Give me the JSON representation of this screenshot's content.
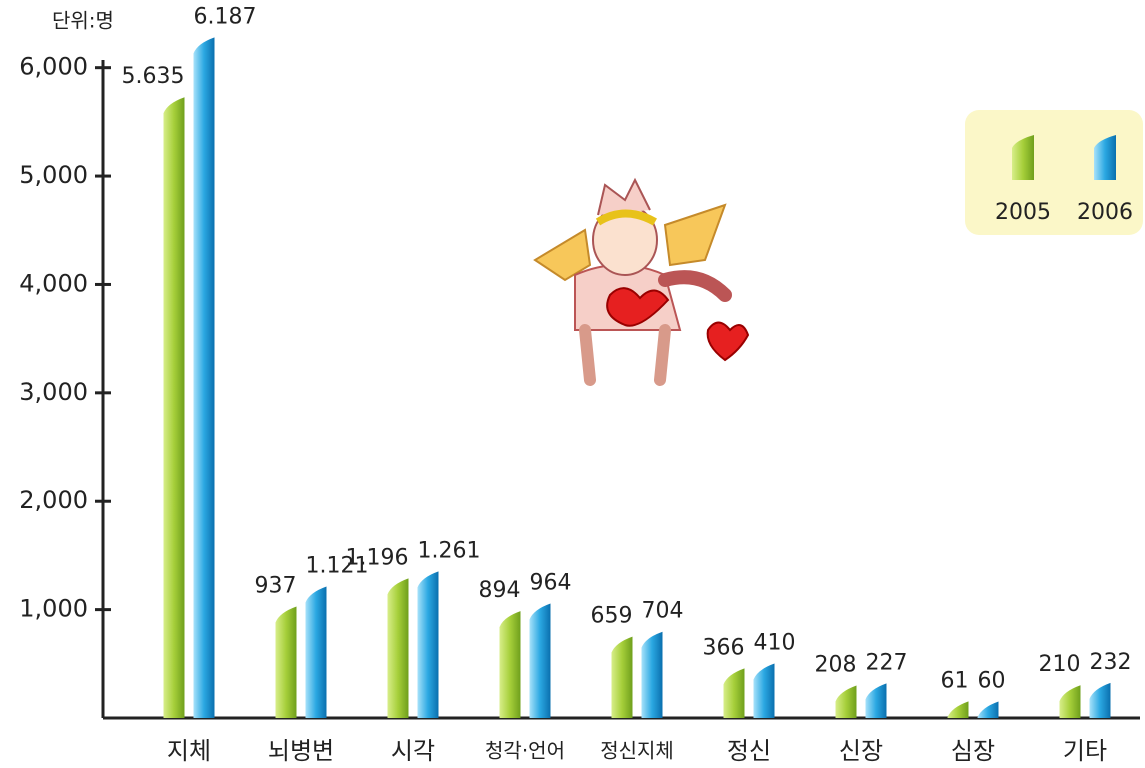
{
  "chart_data": {
    "type": "bar",
    "unit_label": "단위:명",
    "categories": [
      "지체",
      "뇌병변",
      "시각",
      "청각·언어",
      "정신지체",
      "정신",
      "신장",
      "심장",
      "기타"
    ],
    "series": [
      {
        "name": "2005",
        "color": "#a6cf3a",
        "label_color": "#e0157a",
        "values": [
          5635,
          937,
          1196,
          894,
          659,
          366,
          208,
          61,
          210
        ],
        "value_labels": [
          "5.635",
          "937",
          "1.196",
          "894",
          "659",
          "366",
          "208",
          "61",
          "210"
        ]
      },
      {
        "name": "2006",
        "color": "#2ba8e2",
        "label_color": "#2e3a8c",
        "values": [
          6187,
          1121,
          1261,
          964,
          704,
          410,
          227,
          60,
          232
        ],
        "value_labels": [
          "6.187",
          "1.121",
          "1.261",
          "964",
          "704",
          "410",
          "227",
          "60",
          "232"
        ]
      }
    ],
    "ylim": [
      0,
      6200
    ],
    "yticks": [
      {
        "value": 1000,
        "label": "1,000"
      },
      {
        "value": 2000,
        "label": "2,000"
      },
      {
        "value": 3000,
        "label": "3,000"
      },
      {
        "value": 4000,
        "label": "4,000"
      },
      {
        "value": 5000,
        "label": "5,000"
      },
      {
        "value": 6000,
        "label": "6,000"
      }
    ],
    "legend": "upper right"
  }
}
